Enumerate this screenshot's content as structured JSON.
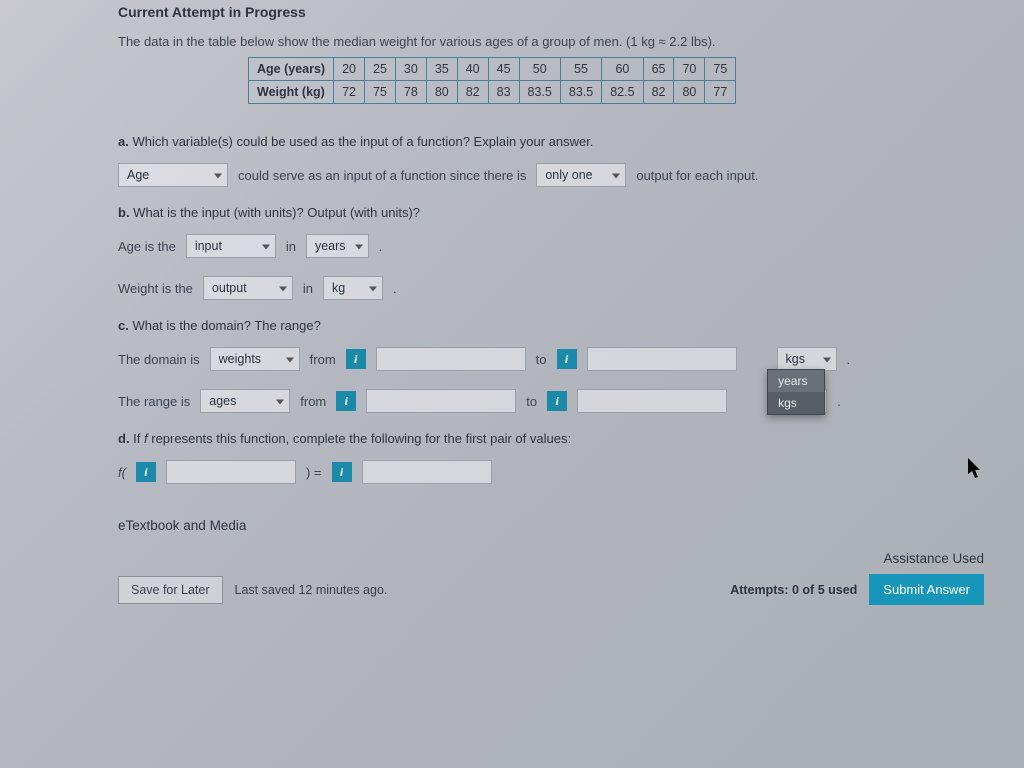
{
  "title": "Current Attempt in Progress",
  "intro": "The data in the table below show the median weight for various ages of a group of men. (1 kg ≈ 2.2 lbs).",
  "table": {
    "row1_header": "Age (years)",
    "row2_header": "Weight (kg)",
    "ages": [
      "20",
      "25",
      "30",
      "35",
      "40",
      "45",
      "50",
      "55",
      "60",
      "65",
      "70",
      "75"
    ],
    "weights": [
      "72",
      "75",
      "78",
      "80",
      "82",
      "83",
      "83.5",
      "83.5",
      "82.5",
      "82",
      "80",
      "77"
    ],
    "border_color": "#4a8090"
  },
  "partA": {
    "question": "a. Which variable(s) could be used as the input of a function? Explain your answer.",
    "select1": "Age",
    "text1": "could serve as an input of a function since there is",
    "select2": "only one",
    "text2": "output for each input."
  },
  "partB": {
    "question": "b. What is the input (with units)? Output (with units)?",
    "line1_pre": "Age is the",
    "line1_sel1": "input",
    "mid": "in",
    "line1_sel2": "years",
    "period": ".",
    "line2_pre": "Weight is the",
    "line2_sel1": "output",
    "line2_sel2": "kg"
  },
  "partC": {
    "question": "c. What is the domain? The range?",
    "line1_pre": "The domain is",
    "line1_sel": "weights",
    "from": "from",
    "to": "to",
    "unit1_sel": "kgs",
    "line2_pre": "The range is",
    "line2_sel": "ages",
    "dropdown_options": [
      "years",
      "kgs"
    ],
    "dropdown_highlighted": "kgs"
  },
  "partD": {
    "question": "d. If f represents this function, complete the following for the first pair of values:",
    "fopen": "f(",
    "fmid": ") =",
    "i_label": "i"
  },
  "footer": {
    "etextbook": "eTextbook and Media",
    "save": "Save for Later",
    "saved": "Last saved 12 minutes ago.",
    "attempts": "Attempts: 0 of 5 used",
    "submit": "Submit Answer",
    "assist": "Assistance Used"
  },
  "colors": {
    "primary_button": "#1796ba",
    "info_badge": "#1a8aa8"
  }
}
